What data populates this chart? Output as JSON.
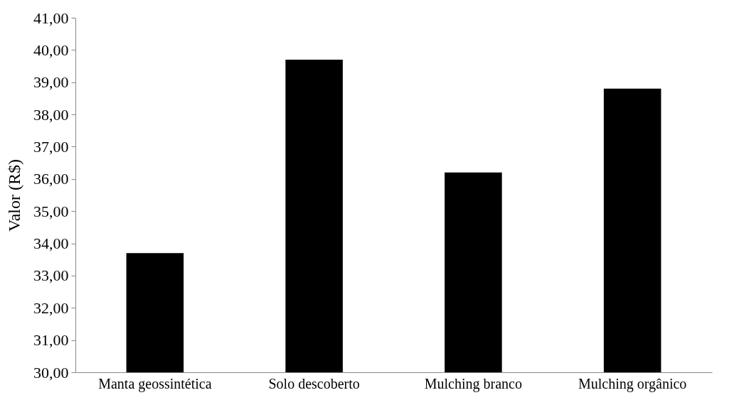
{
  "chart_data": {
    "type": "bar",
    "ylabel": "Valor (R$)",
    "categories": [
      "Manta geossintética",
      "Solo descoberto",
      "Mulching branco",
      "Mulching orgânico"
    ],
    "values": [
      33.7,
      39.7,
      36.2,
      38.8
    ],
    "color": "#000000",
    "ylim": [
      30,
      41
    ],
    "yticks": [
      {
        "value": 30,
        "label": "30,00"
      },
      {
        "value": 31,
        "label": "31,00"
      },
      {
        "value": 32,
        "label": "32,00"
      },
      {
        "value": 33,
        "label": "33,00"
      },
      {
        "value": 34,
        "label": "34,00"
      },
      {
        "value": 35,
        "label": "35,00"
      },
      {
        "value": 36,
        "label": "36,00"
      },
      {
        "value": 37,
        "label": "37,00"
      },
      {
        "value": 38,
        "label": "38,00"
      },
      {
        "value": 39,
        "label": "39,00"
      },
      {
        "value": 40,
        "label": "40,00"
      },
      {
        "value": 41,
        "label": "41,00"
      }
    ],
    "grid": false
  }
}
